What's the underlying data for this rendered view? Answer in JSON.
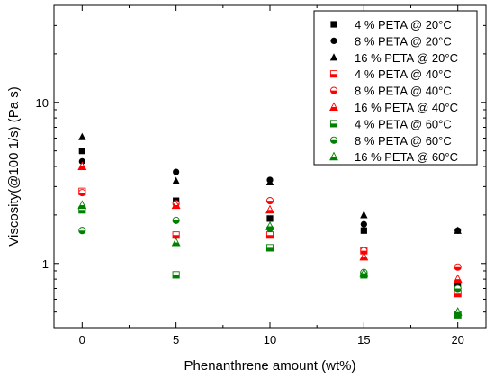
{
  "chart_data": {
    "type": "scatter",
    "title": "",
    "xlabel": "Phenanthrene amount (wt%)",
    "ylabel": "Viscosity(@100 1/s) (Pa s)",
    "x_scale": "linear",
    "y_scale": "log",
    "xlim": [
      -1.5,
      21.5
    ],
    "ylim": [
      0.4,
      40
    ],
    "x_ticks": [
      0,
      5,
      10,
      15,
      20
    ],
    "x_tick_labels": [
      "0",
      "5",
      "10",
      "15",
      "20"
    ],
    "y_ticks": [
      1,
      10
    ],
    "y_tick_labels": [
      "1",
      "10"
    ],
    "grid": false,
    "legend_position": "top-right",
    "colors": {
      "black": "#000000",
      "red": "#ff0000",
      "green": "#008000"
    },
    "series": [
      {
        "name": "4 % PETA @ 20°C",
        "marker": "square",
        "fill": "full",
        "color": "#000000",
        "x": [
          0,
          5,
          10,
          15,
          20
        ],
        "y": [
          5.0,
          2.45,
          1.9,
          1.6,
          0.75
        ]
      },
      {
        "name": "8 % PETA @ 20°C",
        "marker": "circle",
        "fill": "full",
        "color": "#000000",
        "x": [
          0,
          5,
          10,
          15,
          20
        ],
        "y": [
          4.3,
          3.7,
          3.3,
          1.75,
          1.6
        ]
      },
      {
        "name": "16 % PETA @ 20°C",
        "marker": "triangle",
        "fill": "full",
        "color": "#000000",
        "x": [
          0,
          5,
          10,
          15,
          20
        ],
        "y": [
          6.1,
          3.25,
          3.2,
          2.0,
          1.6
        ]
      },
      {
        "name": "4 % PETA @ 40°C",
        "marker": "square",
        "fill": "half",
        "color": "#ff0000",
        "x": [
          0,
          5,
          10,
          15,
          20
        ],
        "y": [
          2.8,
          1.5,
          1.5,
          1.2,
          0.65
        ]
      },
      {
        "name": "8 % PETA @ 40°C",
        "marker": "circle",
        "fill": "half",
        "color": "#ff0000",
        "x": [
          0,
          5,
          10,
          15,
          20
        ],
        "y": [
          2.75,
          2.35,
          2.45,
          1.2,
          0.95
        ]
      },
      {
        "name": "16 % PETA @ 40°C",
        "marker": "triangle",
        "fill": "half",
        "color": "#ff0000",
        "x": [
          0,
          5,
          10,
          15,
          20
        ],
        "y": [
          4.0,
          2.3,
          2.15,
          1.1,
          0.8
        ]
      },
      {
        "name": "4 % PETA @ 60°C",
        "marker": "square",
        "fill": "half",
        "color": "#008000",
        "x": [
          0,
          5,
          10,
          15,
          20
        ],
        "y": [
          2.15,
          0.85,
          1.25,
          0.85,
          0.48
        ]
      },
      {
        "name": "8 % PETA @ 60°C",
        "marker": "circle",
        "fill": "half",
        "color": "#008000",
        "x": [
          0,
          5,
          10,
          15,
          20
        ],
        "y": [
          1.6,
          1.85,
          1.65,
          0.88,
          0.7
        ]
      },
      {
        "name": "16 % PETA @ 60°C",
        "marker": "triangle",
        "fill": "half",
        "color": "#008000",
        "x": [
          0,
          5,
          10,
          15,
          20
        ],
        "y": [
          2.3,
          1.35,
          1.7,
          0.87,
          0.5
        ]
      }
    ]
  }
}
